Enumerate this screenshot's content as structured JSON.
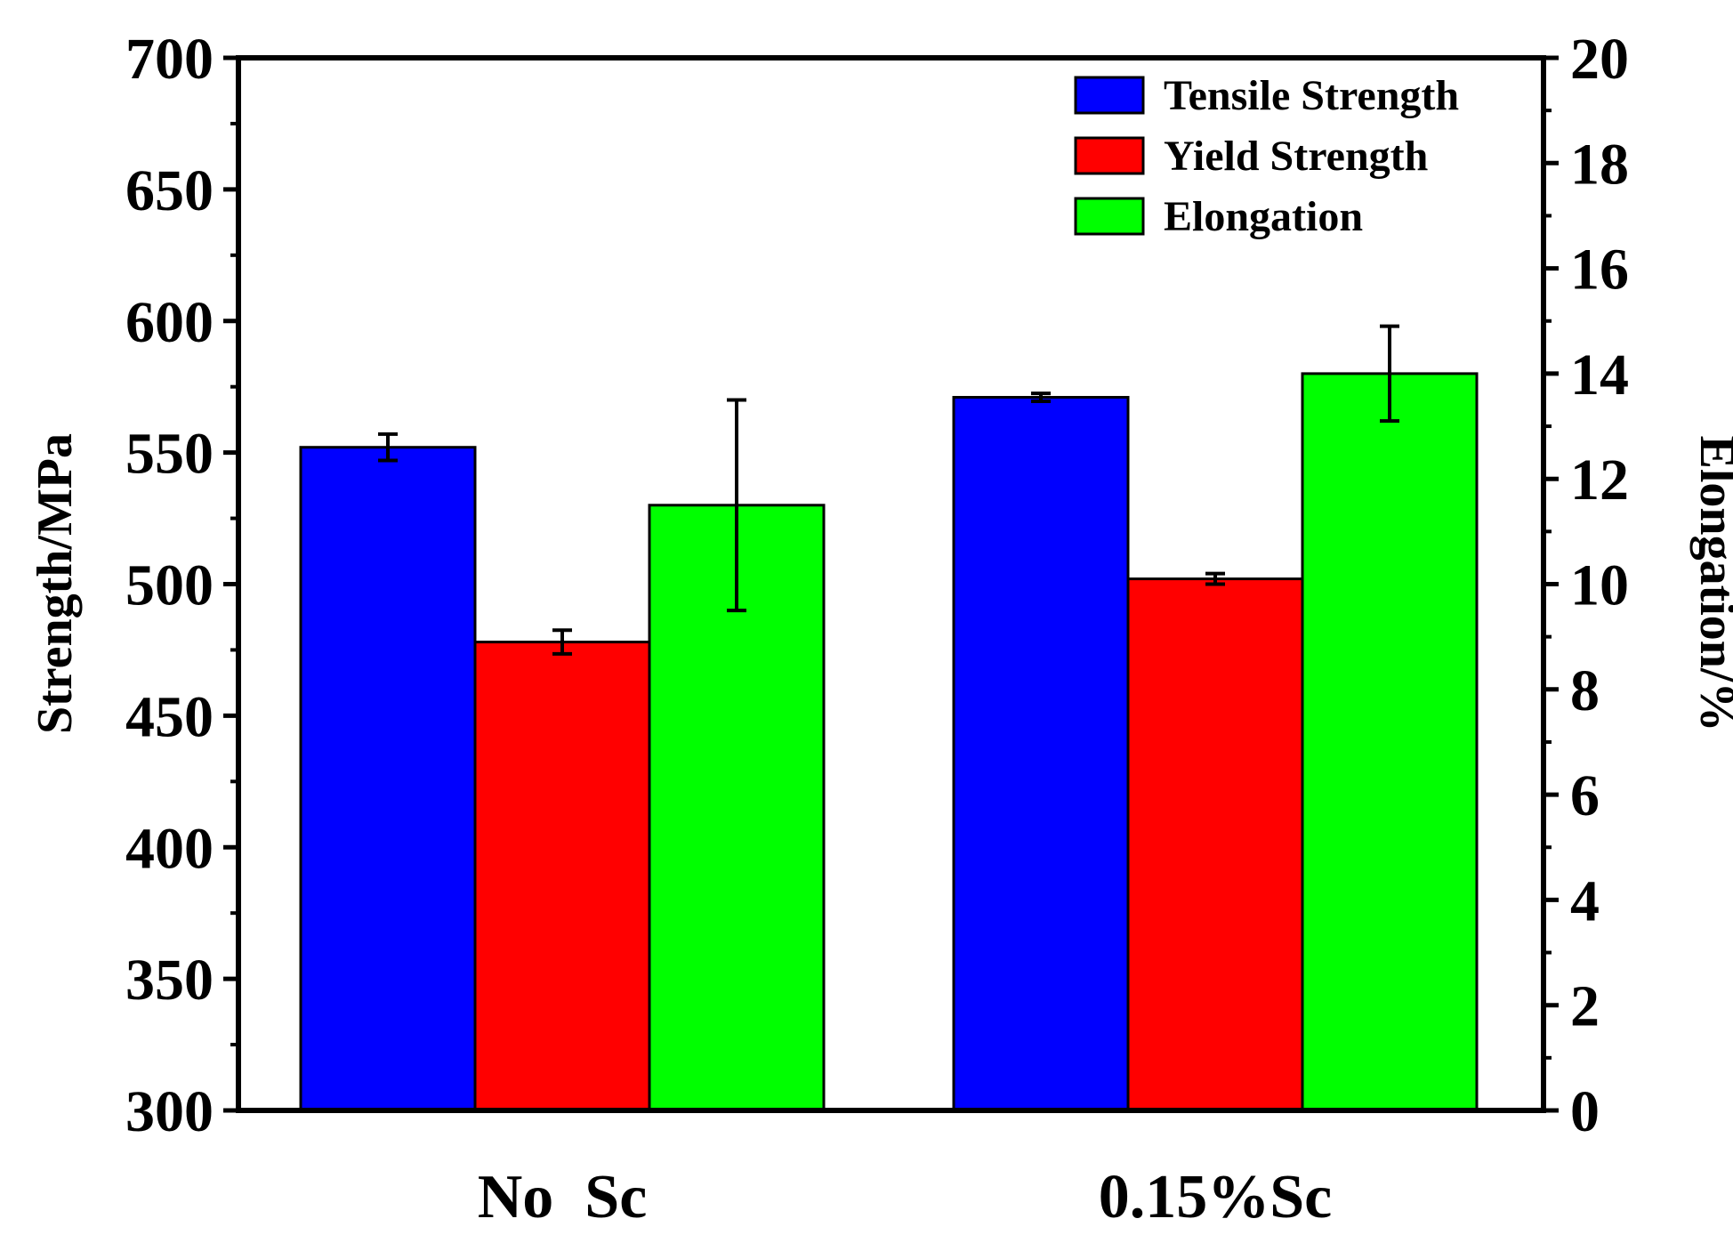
{
  "chart_data": {
    "type": "bar",
    "title": "",
    "categories": [
      "No  Sc",
      "0.15%Sc"
    ],
    "series": [
      {
        "name": "Tensile Strength",
        "axis": "left",
        "color": "#0000ff",
        "values": [
          552,
          571
        ],
        "errors": [
          5,
          1.5
        ]
      },
      {
        "name": "Yield Strength",
        "axis": "left",
        "color": "#ff0000",
        "values": [
          478,
          502
        ],
        "errors": [
          4.5,
          2
        ]
      },
      {
        "name": "Elongation",
        "axis": "right",
        "color": "#00ff00",
        "values": [
          11.5,
          14
        ],
        "errors": [
          2,
          0.9
        ]
      }
    ],
    "ylabel": "Strength/MPa",
    "ylim": [
      300,
      700
    ],
    "yticks": [
      300,
      350,
      400,
      450,
      500,
      550,
      600,
      650,
      700
    ],
    "y2label": "Elongation/%",
    "y2lim": [
      0,
      20
    ],
    "y2ticks": [
      0,
      2,
      4,
      6,
      8,
      10,
      12,
      14,
      16,
      18,
      20
    ],
    "legend_position": "top-right",
    "grid": false
  }
}
